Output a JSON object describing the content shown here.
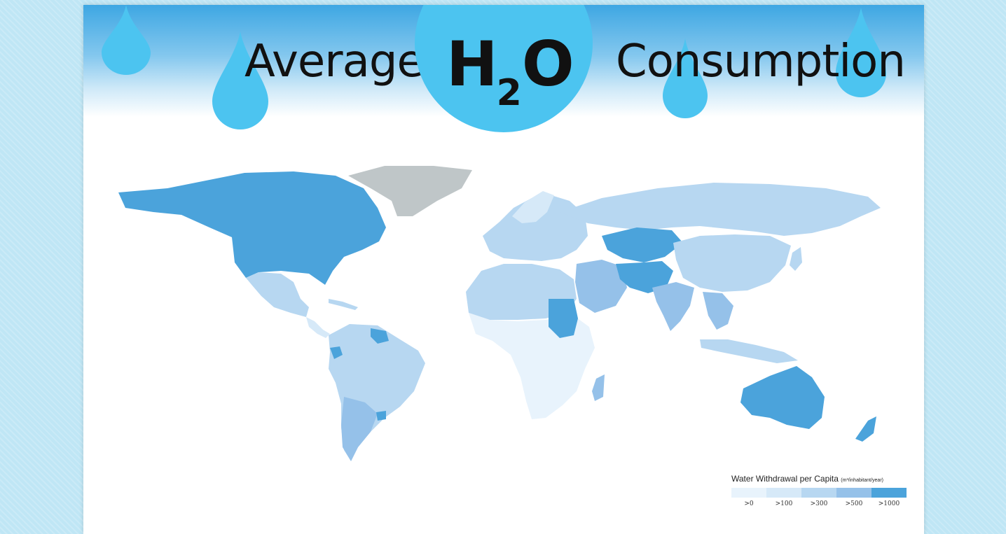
{
  "header": {
    "title_left": "Average",
    "title_h": "H",
    "title_sub": "2",
    "title_o": "O",
    "title_right": "Consumption"
  },
  "colors": {
    "background": "#bfe6f5",
    "header_top": "#3ea7e3",
    "drop": "#4cc4f0",
    "no_data": "#bfc6c8",
    "class_0": "#e8f3fc",
    "class_100": "#d6e9f8",
    "class_300": "#b7d7f1",
    "class_500": "#95c1e9",
    "class_1000": "#4ba3db"
  },
  "map": {
    "icon": "world-map-icon",
    "regions": [
      {
        "name": "North America (USA, Canada)",
        "class": ">1000"
      },
      {
        "name": "Greenland",
        "class": "no data"
      },
      {
        "name": "Mexico",
        "class": ">300"
      },
      {
        "name": "Central America",
        "class": ">100"
      },
      {
        "name": "South America",
        "class": ">300"
      },
      {
        "name": "Argentina / Chile",
        "class": ">500"
      },
      {
        "name": "Guyana / Suriname",
        "class": ">1000"
      },
      {
        "name": "Ecuador",
        "class": ">1000"
      },
      {
        "name": "Europe",
        "class": ">300"
      },
      {
        "name": "Russia",
        "class": ">300"
      },
      {
        "name": "North Africa",
        "class": ">300"
      },
      {
        "name": "Sub-Saharan Africa",
        "class": ">0"
      },
      {
        "name": "Sudan",
        "class": ">1000"
      },
      {
        "name": "Madagascar",
        "class": ">500"
      },
      {
        "name": "Middle East",
        "class": ">500"
      },
      {
        "name": "Central Asia",
        "class": ">1000"
      },
      {
        "name": "Iran / Pakistan",
        "class": ">1000"
      },
      {
        "name": "India",
        "class": ">500"
      },
      {
        "name": "China / Mongolia",
        "class": ">300"
      },
      {
        "name": "Southeast Asia",
        "class": ">500"
      },
      {
        "name": "Australia",
        "class": ">1000"
      },
      {
        "name": "New Zealand",
        "class": ">1000"
      }
    ]
  },
  "legend": {
    "title": "Water Withdrawal per Capita",
    "unit": "(m³/inhabitant/year)",
    "labels": [
      ">0",
      ">100",
      ">300",
      ">500",
      ">1000"
    ]
  }
}
